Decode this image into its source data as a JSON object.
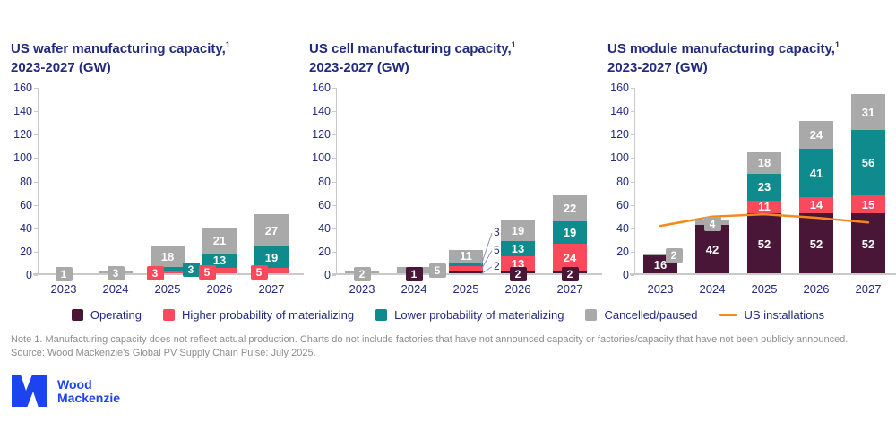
{
  "colors": {
    "operating": "#4A1638",
    "higher": "#F9495A",
    "lower": "#0F8A8D",
    "cancelled": "#A9A9A9",
    "installations": "#F28A1F",
    "navy": "#212A7D",
    "axis": "#C9C9C9",
    "note_gray": "#8E8E8E",
    "logo_blue": "#1B44F0"
  },
  "chart_data": [
    {
      "type": "bar",
      "stacked": true,
      "title_line1": "US wafer manufacturing capacity,",
      "title_sup": "1",
      "title_line2": "2023-2027 (GW)",
      "categories": [
        "2023",
        "2024",
        "2025",
        "2026",
        "2027"
      ],
      "ylim": [
        0,
        160
      ],
      "y_ticks": [
        0,
        20,
        40,
        60,
        80,
        100,
        120,
        140,
        160
      ],
      "grid": false,
      "series": [
        {
          "key": "operating",
          "name": "Operating",
          "values": [
            0,
            0,
            0,
            0,
            0
          ],
          "label_pos": [
            null,
            null,
            null,
            null,
            null
          ]
        },
        {
          "key": "higher",
          "name": "Higher probability of materializing",
          "values": [
            0,
            0,
            3,
            5,
            5
          ],
          "label_pos": [
            null,
            null,
            "chipL",
            "chipL",
            "chipL"
          ]
        },
        {
          "key": "lower",
          "name": "Lower probability of materializing",
          "values": [
            0,
            0,
            3,
            13,
            19
          ],
          "label_pos": [
            null,
            null,
            "chipR",
            "in",
            "in"
          ]
        },
        {
          "key": "cancelled",
          "name": "Cancelled/paused",
          "values": [
            1,
            3,
            18,
            21,
            27
          ],
          "label_pos": [
            "chipC",
            "chipC",
            "in",
            "in",
            "in"
          ]
        }
      ]
    },
    {
      "type": "bar",
      "stacked": true,
      "title_line1": "US cell manufacturing capacity,",
      "title_sup": "1",
      "title_line2": "2023-2027 (GW)",
      "categories": [
        "2023",
        "2024",
        "2025",
        "2026",
        "2027"
      ],
      "ylim": [
        0,
        160
      ],
      "y_ticks": [
        0,
        20,
        40,
        60,
        80,
        100,
        120,
        140,
        160
      ],
      "grid": false,
      "series": [
        {
          "key": "operating",
          "name": "Operating",
          "values": [
            0,
            1,
            2,
            2,
            2
          ],
          "label_pos": [
            null,
            "chipC",
            "leader",
            "chipC",
            "chipC"
          ],
          "leader_gw": [
            null,
            null,
            7,
            null,
            null
          ]
        },
        {
          "key": "higher",
          "name": "Higher probability of materializing",
          "values": [
            0,
            0,
            5,
            13,
            24
          ],
          "label_pos": [
            null,
            null,
            "leader",
            "in",
            "in"
          ],
          "leader_gw": [
            null,
            null,
            21,
            null,
            null
          ]
        },
        {
          "key": "lower",
          "name": "Lower probability of materializing",
          "values": [
            0,
            0,
            3,
            13,
            19
          ],
          "label_pos": [
            null,
            null,
            "leader",
            "in",
            "in"
          ],
          "leader_gw": [
            null,
            null,
            36,
            null,
            null
          ]
        },
        {
          "key": "cancelled",
          "name": "Cancelled/paused",
          "values": [
            2,
            5,
            11,
            19,
            22
          ],
          "label_pos": [
            "chipC",
            "chipR",
            "in",
            "in",
            "in"
          ]
        }
      ]
    },
    {
      "type": "bar",
      "stacked": true,
      "title_line1": "US module manufacturing capacity,",
      "title_sup": "1",
      "title_line2": "2023-2027 (GW)",
      "categories": [
        "2023",
        "2024",
        "2025",
        "2026",
        "2027"
      ],
      "ylim": [
        0,
        160
      ],
      "y_ticks": [
        0,
        20,
        40,
        60,
        80,
        100,
        120,
        140,
        160
      ],
      "grid": false,
      "series": [
        {
          "key": "operating",
          "name": "Operating",
          "values": [
            16,
            42,
            52,
            52,
            52
          ],
          "label_pos": [
            "in",
            "in",
            "in",
            "in",
            "in"
          ]
        },
        {
          "key": "higher",
          "name": "Higher probability of materializing",
          "values": [
            0,
            0,
            11,
            14,
            15
          ],
          "label_pos": [
            null,
            null,
            "in",
            "in",
            "in"
          ]
        },
        {
          "key": "lower",
          "name": "Lower probability of materializing",
          "values": [
            0,
            0,
            23,
            41,
            56
          ],
          "label_pos": [
            null,
            null,
            "in",
            "in",
            "in"
          ]
        },
        {
          "key": "cancelled",
          "name": "Cancelled/paused",
          "values": [
            2,
            4,
            18,
            24,
            31
          ],
          "label_pos": [
            "chipRI",
            "chipC",
            "in",
            "in",
            "in"
          ]
        }
      ],
      "line": {
        "name": "US installations",
        "values": [
          42,
          50,
          52,
          49,
          45
        ]
      }
    }
  ],
  "legend": {
    "items": [
      {
        "label": "Operating",
        "key": "operating",
        "type": "swatch"
      },
      {
        "label": "Higher probability of materializing",
        "key": "higher",
        "type": "swatch"
      },
      {
        "label": "Lower probability of materializing",
        "key": "lower",
        "type": "swatch"
      },
      {
        "label": "Cancelled/paused",
        "key": "cancelled",
        "type": "swatch"
      },
      {
        "label": "US installations",
        "key": "installations",
        "type": "line"
      }
    ]
  },
  "notes": {
    "line1": "Note 1. Manufacturing capacity does not reflect actual production. Charts do not include factories that have not announced capacity or factories/capacity that have not been publicly announced.",
    "line2": "Source: Wood Mackenzie's Global PV Supply Chain Pulse: July 2025."
  },
  "logo": {
    "line1": "Wood",
    "line2": "Mackenzie"
  }
}
